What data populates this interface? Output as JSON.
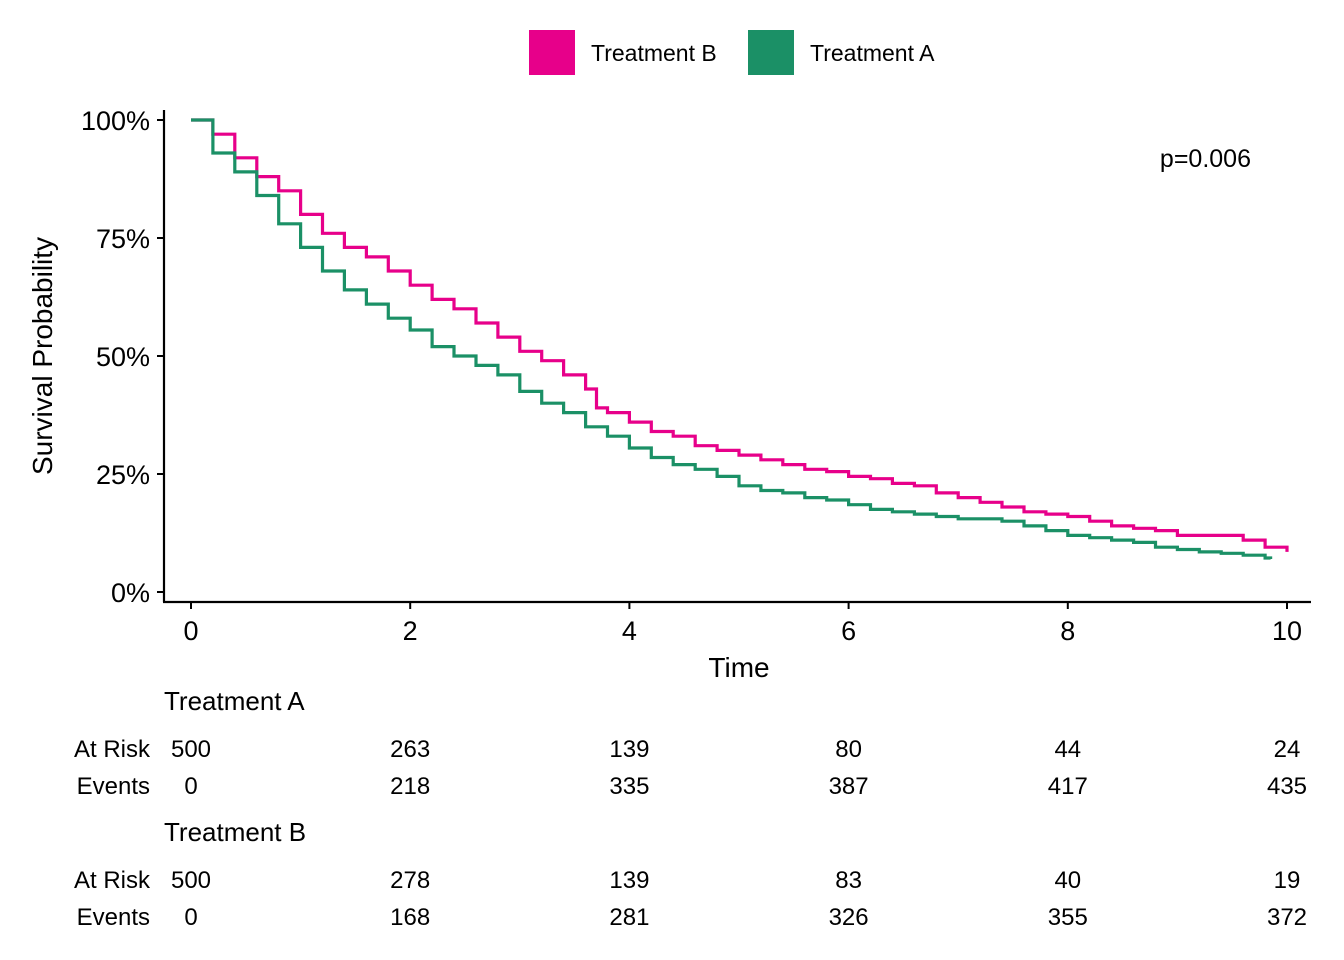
{
  "chart_data": {
    "type": "line",
    "title": "",
    "xlabel": "Time",
    "ylabel": "Survival Probability",
    "xlim": [
      0,
      10
    ],
    "ylim": [
      0,
      1
    ],
    "x_ticks": [
      0,
      2,
      4,
      6,
      8,
      10
    ],
    "y_ticks": [
      0,
      0.25,
      0.5,
      0.75,
      1
    ],
    "y_tick_labels": [
      "0%",
      "25%",
      "50%",
      "75%",
      "100%"
    ],
    "grid": false,
    "legend_position": "top",
    "annotation": "p=0.006",
    "series": [
      {
        "name": "Treatment B",
        "color": "#E7008A",
        "points": [
          [
            0,
            1.0
          ],
          [
            0.2,
            0.97
          ],
          [
            0.4,
            0.92
          ],
          [
            0.6,
            0.88
          ],
          [
            0.8,
            0.85
          ],
          [
            1.0,
            0.8
          ],
          [
            1.2,
            0.76
          ],
          [
            1.4,
            0.73
          ],
          [
            1.6,
            0.71
          ],
          [
            1.8,
            0.68
          ],
          [
            2.0,
            0.65
          ],
          [
            2.2,
            0.62
          ],
          [
            2.4,
            0.6
          ],
          [
            2.6,
            0.57
          ],
          [
            2.8,
            0.54
          ],
          [
            3.0,
            0.51
          ],
          [
            3.2,
            0.49
          ],
          [
            3.4,
            0.46
          ],
          [
            3.6,
            0.43
          ],
          [
            3.7,
            0.39
          ],
          [
            3.8,
            0.38
          ],
          [
            4.0,
            0.36
          ],
          [
            4.2,
            0.34
          ],
          [
            4.4,
            0.33
          ],
          [
            4.6,
            0.31
          ],
          [
            4.8,
            0.3
          ],
          [
            5.0,
            0.29
          ],
          [
            5.2,
            0.28
          ],
          [
            5.4,
            0.27
          ],
          [
            5.6,
            0.26
          ],
          [
            5.8,
            0.255
          ],
          [
            6.0,
            0.245
          ],
          [
            6.2,
            0.24
          ],
          [
            6.4,
            0.23
          ],
          [
            6.6,
            0.225
          ],
          [
            6.8,
            0.21
          ],
          [
            7.0,
            0.2
          ],
          [
            7.2,
            0.19
          ],
          [
            7.4,
            0.18
          ],
          [
            7.6,
            0.17
          ],
          [
            7.8,
            0.165
          ],
          [
            8.0,
            0.16
          ],
          [
            8.2,
            0.15
          ],
          [
            8.4,
            0.14
          ],
          [
            8.6,
            0.135
          ],
          [
            8.8,
            0.13
          ],
          [
            9.0,
            0.12
          ],
          [
            9.2,
            0.12
          ],
          [
            9.4,
            0.12
          ],
          [
            9.6,
            0.11
          ],
          [
            9.8,
            0.095
          ],
          [
            10.0,
            0.085
          ]
        ]
      },
      {
        "name": "Treatment A",
        "color": "#1B9066",
        "points": [
          [
            0,
            1.0
          ],
          [
            0.2,
            0.93
          ],
          [
            0.4,
            0.89
          ],
          [
            0.6,
            0.84
          ],
          [
            0.8,
            0.78
          ],
          [
            1.0,
            0.73
          ],
          [
            1.2,
            0.68
          ],
          [
            1.4,
            0.64
          ],
          [
            1.6,
            0.61
          ],
          [
            1.8,
            0.58
          ],
          [
            2.0,
            0.555
          ],
          [
            2.2,
            0.52
          ],
          [
            2.4,
            0.5
          ],
          [
            2.6,
            0.48
          ],
          [
            2.8,
            0.46
          ],
          [
            3.0,
            0.425
          ],
          [
            3.2,
            0.4
          ],
          [
            3.4,
            0.38
          ],
          [
            3.6,
            0.35
          ],
          [
            3.8,
            0.33
          ],
          [
            4.0,
            0.305
          ],
          [
            4.2,
            0.285
          ],
          [
            4.4,
            0.27
          ],
          [
            4.6,
            0.26
          ],
          [
            4.8,
            0.245
          ],
          [
            5.0,
            0.225
          ],
          [
            5.2,
            0.215
          ],
          [
            5.4,
            0.21
          ],
          [
            5.6,
            0.2
          ],
          [
            5.8,
            0.195
          ],
          [
            6.0,
            0.185
          ],
          [
            6.2,
            0.175
          ],
          [
            6.4,
            0.17
          ],
          [
            6.6,
            0.165
          ],
          [
            6.8,
            0.16
          ],
          [
            7.0,
            0.155
          ],
          [
            7.2,
            0.155
          ],
          [
            7.4,
            0.15
          ],
          [
            7.6,
            0.14
          ],
          [
            7.8,
            0.13
          ],
          [
            8.0,
            0.12
          ],
          [
            8.2,
            0.115
          ],
          [
            8.4,
            0.11
          ],
          [
            8.6,
            0.105
          ],
          [
            8.8,
            0.095
          ],
          [
            9.0,
            0.09
          ],
          [
            9.2,
            0.085
          ],
          [
            9.4,
            0.082
          ],
          [
            9.6,
            0.078
          ],
          [
            9.8,
            0.072
          ],
          [
            9.85,
            0.07
          ]
        ]
      }
    ],
    "risk_table": {
      "times": [
        "0",
        "2",
        "4",
        "6",
        "8",
        "10"
      ],
      "groups": [
        {
          "name": "Treatment A",
          "rows": [
            {
              "label": "At Risk",
              "values": [
                "500",
                "263",
                "139",
                "80",
                "44",
                "24"
              ]
            },
            {
              "label": "Events",
              "values": [
                "0",
                "218",
                "335",
                "387",
                "417",
                "435"
              ]
            }
          ]
        },
        {
          "name": "Treatment B",
          "rows": [
            {
              "label": "At Risk",
              "values": [
                "500",
                "278",
                "139",
                "83",
                "40",
                "19"
              ]
            },
            {
              "label": "Events",
              "values": [
                "0",
                "168",
                "281",
                "326",
                "355",
                "372"
              ]
            }
          ]
        }
      ]
    }
  }
}
